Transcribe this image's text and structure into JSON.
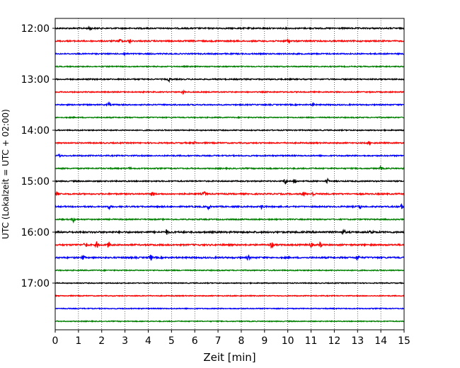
{
  "chart_data": {
    "type": "line",
    "chart_kind": "helicorder seismogram",
    "xlabel": "Zeit  [min]",
    "ylabel": "UTC (Lokalzeit = UTC + 02:00)",
    "xlim": [
      0,
      15
    ],
    "x_ticks": [
      0,
      1,
      2,
      3,
      4,
      5,
      6,
      7,
      8,
      9,
      10,
      11,
      12,
      13,
      14,
      15
    ],
    "x_tick_labels": [
      "0",
      "1",
      "2",
      "3",
      "4",
      "5",
      "6",
      "7",
      "8",
      "9",
      "10",
      "11",
      "12",
      "13",
      "14",
      "15"
    ],
    "y_tick_labels": [
      "12:00",
      "13:00",
      "14:00",
      "15:00",
      "16:00",
      "17:00"
    ],
    "y_tick_rows": [
      0,
      4,
      8,
      12,
      16,
      20
    ],
    "row_minutes": 15,
    "vertical_grid": "dotted",
    "colors_cycle": [
      "#000000",
      "#ff0000",
      "#0000ff",
      "#008000"
    ],
    "series": [
      {
        "start": "12:00",
        "color": "#000000",
        "noise": 0.9,
        "events": [
          [
            1.5,
            2.6
          ]
        ]
      },
      {
        "start": "12:15",
        "color": "#ff0000",
        "noise": 0.9,
        "events": [
          [
            2.8,
            3.0
          ],
          [
            3.2,
            2.6
          ],
          [
            10.0,
            2.4
          ]
        ]
      },
      {
        "start": "12:30",
        "color": "#0000ff",
        "noise": 0.8,
        "events": [
          [
            3.0,
            2.0
          ]
        ]
      },
      {
        "start": "12:45",
        "color": "#008000",
        "noise": 0.7,
        "events": []
      },
      {
        "start": "13:00",
        "color": "#000000",
        "noise": 0.8,
        "events": [
          [
            4.9,
            2.2
          ]
        ]
      },
      {
        "start": "13:15",
        "color": "#ff0000",
        "noise": 0.7,
        "events": [
          [
            5.5,
            2.0
          ]
        ]
      },
      {
        "start": "13:30",
        "color": "#0000ff",
        "noise": 0.8,
        "events": [
          [
            2.3,
            2.2
          ],
          [
            11.1,
            1.6
          ]
        ]
      },
      {
        "start": "13:45",
        "color": "#008000",
        "noise": 0.7,
        "events": []
      },
      {
        "start": "14:00",
        "color": "#000000",
        "noise": 0.7,
        "events": []
      },
      {
        "start": "14:15",
        "color": "#ff0000",
        "noise": 0.8,
        "events": [
          [
            6.0,
            1.6
          ],
          [
            13.5,
            1.8
          ]
        ]
      },
      {
        "start": "14:30",
        "color": "#0000ff",
        "noise": 0.8,
        "events": [
          [
            0.2,
            2.0
          ]
        ]
      },
      {
        "start": "14:45",
        "color": "#008000",
        "noise": 0.8,
        "events": [
          [
            3.2,
            1.4
          ],
          [
            14.0,
            2.2
          ]
        ]
      },
      {
        "start": "15:00",
        "color": "#000000",
        "noise": 0.8,
        "events": [
          [
            9.9,
            4.5
          ],
          [
            10.3,
            3.0
          ],
          [
            11.7,
            3.0
          ]
        ]
      },
      {
        "start": "15:15",
        "color": "#ff0000",
        "noise": 0.9,
        "events": [
          [
            0.1,
            3.8
          ],
          [
            4.2,
            3.0
          ],
          [
            6.4,
            3.2
          ],
          [
            10.7,
            3.0
          ],
          [
            11.1,
            2.6
          ]
        ]
      },
      {
        "start": "15:30",
        "color": "#0000ff",
        "noise": 0.9,
        "events": [
          [
            2.3,
            2.6
          ],
          [
            6.6,
            3.0
          ],
          [
            8.9,
            3.0
          ],
          [
            13.1,
            3.0
          ],
          [
            14.9,
            3.0
          ]
        ]
      },
      {
        "start": "15:45",
        "color": "#008000",
        "noise": 0.8,
        "events": [
          [
            0.8,
            3.6
          ]
        ]
      },
      {
        "start": "16:00",
        "color": "#000000",
        "noise": 1.1,
        "events": [
          [
            4.8,
            3.0
          ],
          [
            12.4,
            3.6
          ],
          [
            13.6,
            2.6
          ]
        ]
      },
      {
        "start": "16:15",
        "color": "#ff0000",
        "noise": 1.0,
        "events": [
          [
            1.3,
            4.2
          ],
          [
            1.8,
            4.2
          ],
          [
            2.3,
            4.0
          ],
          [
            9.3,
            4.5
          ],
          [
            11.0,
            3.0
          ],
          [
            11.4,
            3.0
          ]
        ]
      },
      {
        "start": "16:30",
        "color": "#0000ff",
        "noise": 1.0,
        "events": [
          [
            4.1,
            4.4
          ],
          [
            13.0,
            4.6
          ],
          [
            8.3,
            2.6
          ],
          [
            1.2,
            2.6
          ]
        ]
      },
      {
        "start": "16:45",
        "color": "#008000",
        "noise": 0.7,
        "events": []
      },
      {
        "start": "17:00",
        "color": "#000000",
        "noise": 0.6,
        "events": []
      },
      {
        "start": "17:15",
        "color": "#ff0000",
        "noise": 0.6,
        "events": []
      },
      {
        "start": "17:30",
        "color": "#0000ff",
        "noise": 0.6,
        "events": []
      },
      {
        "start": "17:45",
        "color": "#008000",
        "noise": 0.6,
        "events": []
      }
    ]
  }
}
